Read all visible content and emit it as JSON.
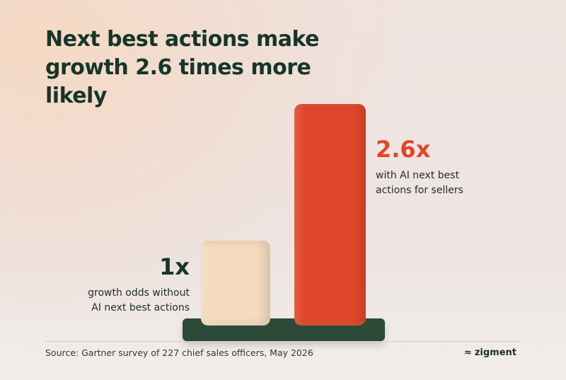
{
  "chart_data": {
    "type": "bar",
    "title": "Next best actions make growth 2.6 times more likely",
    "categories": [
      "growth odds without AI next best actions",
      "with AI next best actions for sellers"
    ],
    "values": [
      1,
      2.6
    ],
    "value_labels": [
      "1x",
      "2.6x"
    ],
    "colors": [
      "#f6dcbf",
      "#e0472a"
    ],
    "source": "Source: Gartner survey of 227 chief sales officers, May 2026",
    "brand": "zigment"
  }
}
